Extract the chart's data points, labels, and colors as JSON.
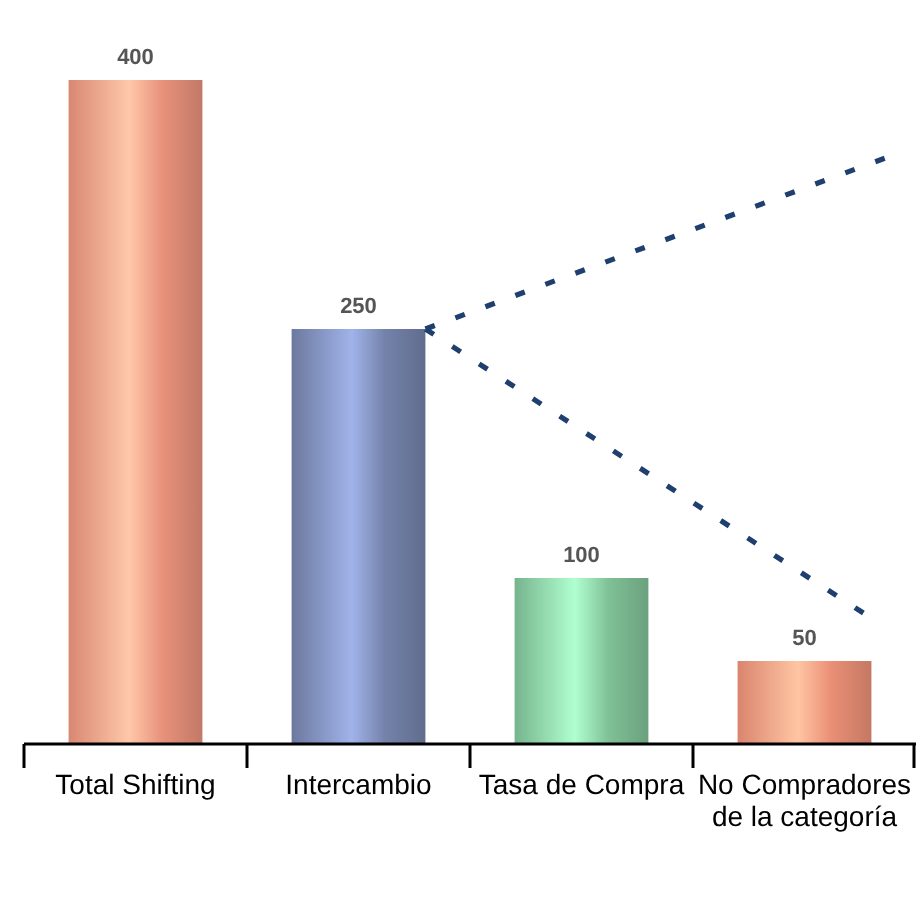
{
  "chart_data": {
    "type": "bar",
    "categories": [
      "Total Shifting",
      "Intercambio",
      "Tasa de Compra",
      "No Compradores de la categoría"
    ],
    "values": [
      400,
      250,
      100,
      50
    ],
    "colors": [
      "#e8917b",
      "#7482aa",
      "#80c197",
      "#ea8f76"
    ],
    "data_labels": true
  }
}
